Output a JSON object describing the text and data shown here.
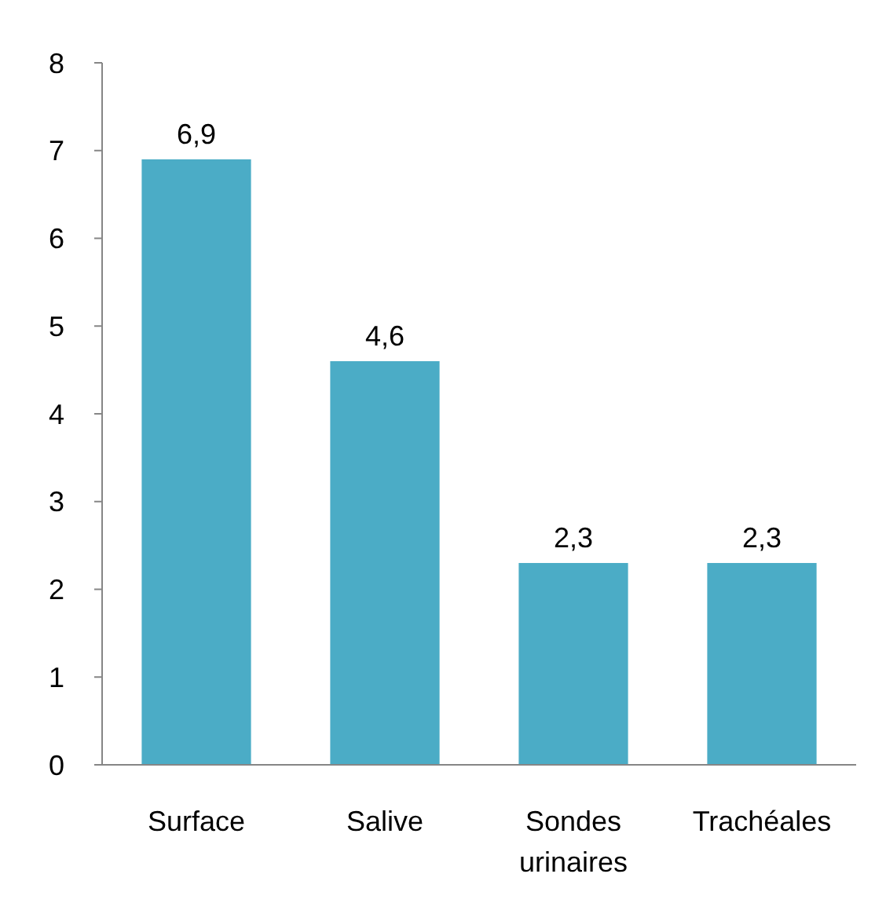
{
  "chart_data": {
    "type": "bar",
    "categories": [
      "Surface",
      "Salive",
      "Sondes urinaires",
      "Trachéales"
    ],
    "values": [
      6.9,
      4.6,
      2.3,
      2.3
    ],
    "color": "#4bacc6",
    "value_labels": [
      "6,9",
      "4,6",
      "2,3",
      "2,3"
    ],
    "ylim": [
      0,
      8
    ],
    "yticks": [
      0,
      1,
      2,
      3,
      4,
      5,
      6,
      7,
      8
    ],
    "grid": false
  }
}
